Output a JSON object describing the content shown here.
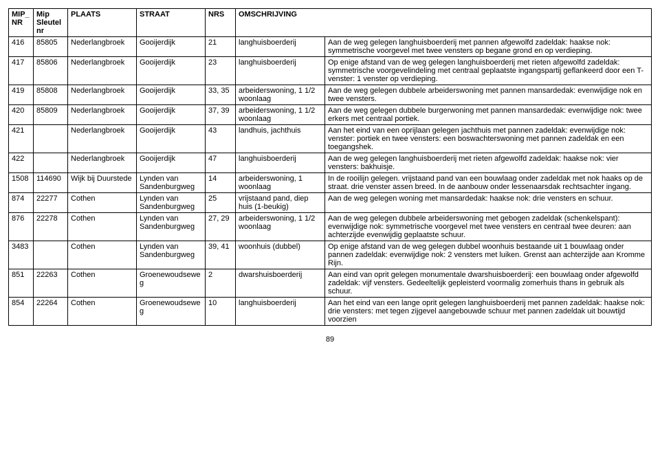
{
  "headers": {
    "mip_nr": "MIP_\nNR",
    "sleutel": "Mip\nSleutel\nnr",
    "plaats": "PLAATS",
    "straat": "STRAAT",
    "nrs": "NRS",
    "omschrijving": "OMSCHRIJVING"
  },
  "rows": [
    {
      "mip_nr": "416",
      "sleutel": "85805",
      "plaats": "Nederlangbroek",
      "straat": "Gooijerdijk",
      "nrs": "21",
      "omschrijving": "langhuisboerderij",
      "desc": "Aan de weg gelegen langhuisboerderij met pannen afgewolfd zadeldak: haakse nok: symmetrische voorgevel met twee vensters op begane grond en op verdieping."
    },
    {
      "mip_nr": "417",
      "sleutel": "85806",
      "plaats": "Nederlangbroek",
      "straat": "Gooijerdijk",
      "nrs": "23",
      "omschrijving": "langhuisboerderij",
      "desc": "Op enige afstand van de weg gelegen langhuisboerderij met rieten afgewolfd zadeldak: symmetrische voorgevelindeling met centraal geplaatste ingangspartij geflankeerd door een T-venster: 1 venster op verdieping."
    },
    {
      "mip_nr": "419",
      "sleutel": "85808",
      "plaats": "Nederlangbroek",
      "straat": "Gooijerdijk",
      "nrs": "33, 35",
      "omschrijving": "arbeiderswoning, 1 1/2 woonlaag",
      "desc": "Aan de weg gelegen dubbele arbeiderswoning met pannen mansardedak: evenwijdige nok en twee vensters."
    },
    {
      "mip_nr": "420",
      "sleutel": "85809",
      "plaats": "Nederlangbroek",
      "straat": "Gooijerdijk",
      "nrs": "37, 39",
      "omschrijving": "arbeiderswoning, 1 1/2 woonlaag",
      "desc": "Aan de weg gelegen dubbele burgerwoning met pannen mansardedak: evenwijdige nok: twee erkers met centraal portiek."
    },
    {
      "mip_nr": "421",
      "sleutel": "",
      "plaats": "Nederlangbroek",
      "straat": "Gooijerdijk",
      "nrs": "43",
      "omschrijving": "landhuis, jachthuis",
      "desc": "Aan het eind van een oprijlaan gelegen jachthuis met pannen zadeldak: evenwijdige nok: venster: portiek en twee vensters: een boswachterswoning met pannen zadeldak en een toegangshek."
    },
    {
      "mip_nr": "422",
      "sleutel": "",
      "plaats": "Nederlangbroek",
      "straat": "Gooijerdijk",
      "nrs": "47",
      "omschrijving": "langhuisboerderij",
      "desc": "Aan de weg gelegen langhuisboerderij met rieten afgewolfd zadeldak: haakse nok: vier vensters: bakhuisje."
    },
    {
      "mip_nr": "1508",
      "sleutel": "114690",
      "plaats": "Wijk bij Duurstede",
      "straat": "Lynden van Sandenburgweg",
      "nrs": "14",
      "omschrijving": "arbeiderswoning, 1 woonlaag",
      "desc": "In de rooilijn gelegen. vrijstaand pand van een bouwlaag onder zadeldak met nok haaks op de straat. drie venster assen breed. In de aanbouw onder lessenaarsdak rechtsachter ingang."
    },
    {
      "mip_nr": "874",
      "sleutel": "22277",
      "plaats": "Cothen",
      "straat": "Lynden van Sandenburgweg",
      "nrs": "25",
      "omschrijving": "vrijstaand pand, diep huis (1-beukig)",
      "desc": "Aan de weg gelegen woning met mansardedak: haakse nok: drie vensters en schuur."
    },
    {
      "mip_nr": "876",
      "sleutel": "22278",
      "plaats": "Cothen",
      "straat": "Lynden van Sandenburgweg",
      "nrs": "27, 29",
      "omschrijving": "arbeiderswoning, 1 1/2 woonlaag",
      "desc": "Aan de weg gelegen dubbele arbeiderswoning met gebogen zadeldak (schenkelspant): evenwijdige nok: symmetrische voorgevel met twee vensters en centraal twee deuren: aan achterzijde evenwijdig geplaatste schuur."
    },
    {
      "mip_nr": "3483",
      "sleutel": "",
      "plaats": "Cothen",
      "straat": "Lynden van Sandenburgweg",
      "nrs": "39, 41",
      "omschrijving": "woonhuis (dubbel)",
      "desc": "Op enige afstand van de weg gelegen dubbel woonhuis bestaande uit 1 bouwlaag onder pannen zadeldak: evenwijdige nok: 2 vensters met luiken. Grenst aan achterzijde aan Kromme Rijn."
    },
    {
      "mip_nr": "851",
      "sleutel": "22263",
      "plaats": "Cothen",
      "straat": "Groenewoudsewe g",
      "nrs": "2",
      "omschrijving": "dwarshuisboerderij",
      "desc": "Aan eind van oprit gelegen monumentale dwarshuisboerderij: een bouwlaag onder afgewolfd zadeldak: vijf vensters. Gedeeltelijk gepleisterd voormalig zomerhuis thans in gebruik als schuur."
    },
    {
      "mip_nr": "854",
      "sleutel": "22264",
      "plaats": "Cothen",
      "straat": "Groenewoudsewe g",
      "nrs": "10",
      "omschrijving": "langhuisboerderij",
      "desc": "Aan het eind van een lange oprit gelegen langhuisboerderij met pannen zadeldak: haakse nok: drie vensters: met tegen zijgevel aangebouwde schuur met pannen zadeldak uit bouwtijd voorzien"
    }
  ],
  "page_number": "89"
}
